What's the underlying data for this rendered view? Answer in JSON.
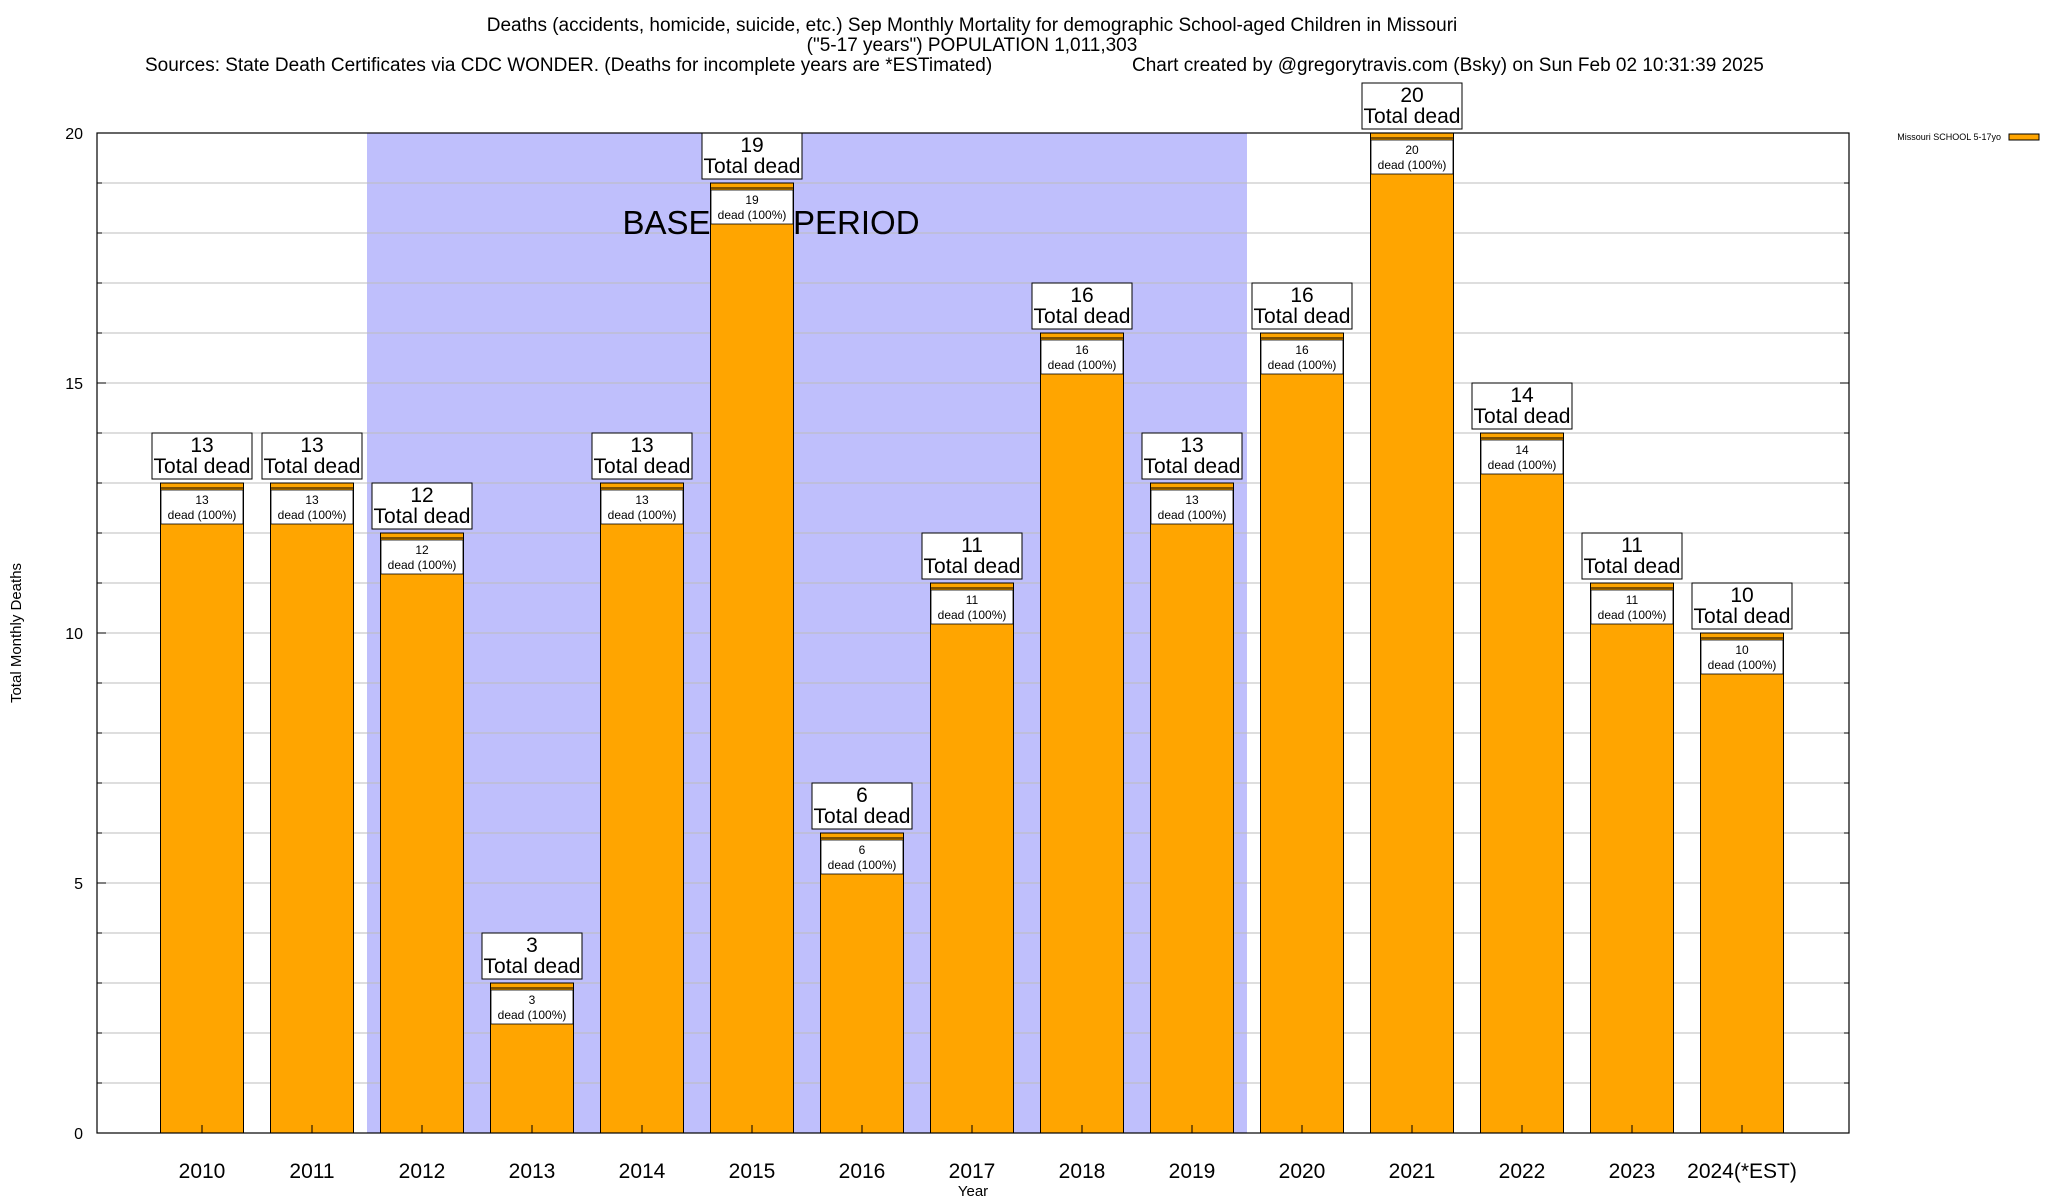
{
  "title": {
    "line1": "Deaths (accidents, homicide, suicide, etc.) Sep Monthly Mortality for demographic School-aged Children in Missouri",
    "line2": "(\"5-17 years\") POPULATION 1,011,303",
    "line3_left": "Sources: State Death Certificates via CDC WONDER. (Deaths for incomplete years are *ESTimated)",
    "line3_right": "Chart created by @gregorytravis.com (Bsky) on Sun Feb 02 10:31:39 2025"
  },
  "baseline_label": "BASELINE PERIOD",
  "colors": {
    "bar": "#ffa500",
    "baseline_band": "#bfbffc",
    "grid": "#bdbdbd"
  },
  "chart_data": {
    "type": "bar",
    "xlabel": "Year",
    "ylabel": "Total Monthly Deaths",
    "ylim": [
      0,
      20
    ],
    "yticks": [
      0,
      5,
      10,
      15,
      20
    ],
    "grid": true,
    "legend_position": "top-right",
    "categories": [
      "2010",
      "2011",
      "2012",
      "2013",
      "2014",
      "2015",
      "2016",
      "2017",
      "2018",
      "2019",
      "2020",
      "2021",
      "2022",
      "2023",
      "2024(*EST)"
    ],
    "series": [
      {
        "name": "Missouri SCHOOL 5-17yo",
        "values": [
          13,
          13,
          12,
          3,
          13,
          19,
          6,
          11,
          16,
          13,
          16,
          20,
          14,
          11,
          10
        ]
      }
    ],
    "baseline_period": [
      "2012",
      "2019"
    ],
    "total_label_text": "Total dead",
    "segment_label_text": "dead (100%)"
  }
}
